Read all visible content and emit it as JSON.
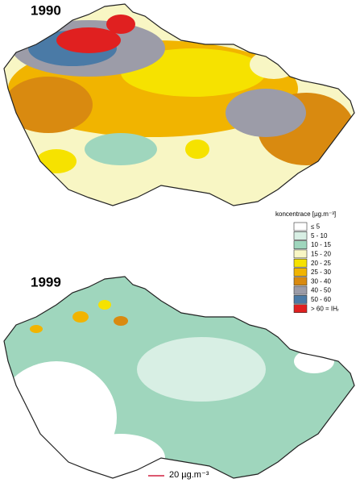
{
  "maps": [
    {
      "title": "1990"
    },
    {
      "title": "1999"
    }
  ],
  "legend": {
    "title": "koncentrace [µg.m⁻³]",
    "items": [
      {
        "label": "≤  5",
        "color": "#ffffff"
      },
      {
        "label": "5 - 10",
        "color": "#d8efe4"
      },
      {
        "label": "10 - 15",
        "color": "#9fd6bd"
      },
      {
        "label": "15 - 20",
        "color": "#f8f6c4"
      },
      {
        "label": "20 - 25",
        "color": "#f6e200"
      },
      {
        "label": "25 - 30",
        "color": "#f1b400"
      },
      {
        "label": "30 - 40",
        "color": "#d98a10"
      },
      {
        "label": "40 - 50",
        "color": "#9c9ca8"
      },
      {
        "label": "50 - 60",
        "color": "#4a7aa6"
      },
      {
        "label": "> 60 = IHᵣ",
        "color": "#e02020"
      }
    ]
  },
  "scale": {
    "label": "20 µg.m⁻³"
  }
}
